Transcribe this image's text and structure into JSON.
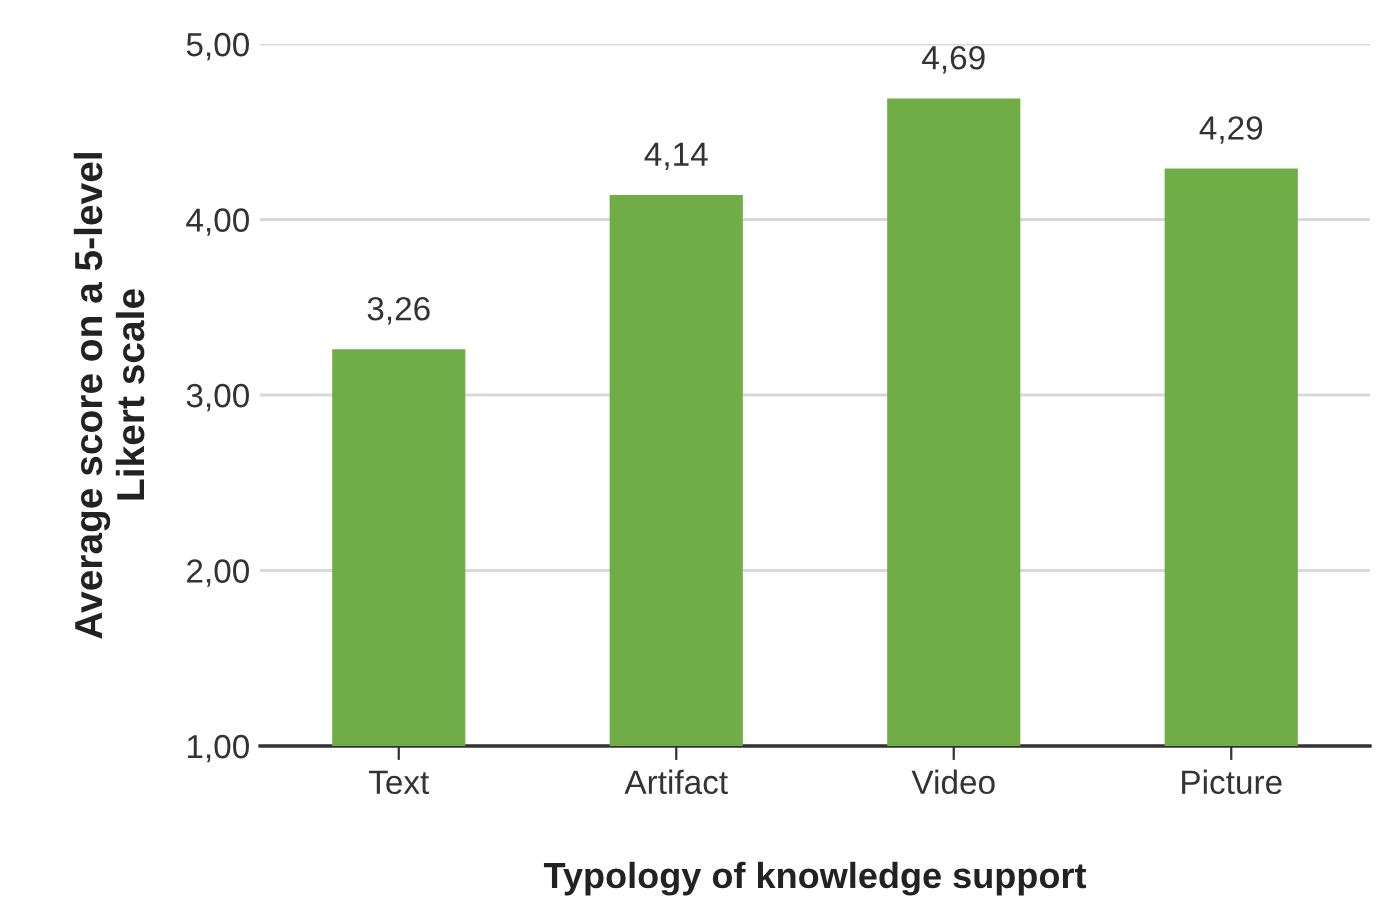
{
  "chart_data": {
    "type": "bar",
    "xlabel": "Typology of knowledge support",
    "ylabel": "Average score on a 5-level\nLikert scale",
    "categories": [
      "Text",
      "Artifact",
      "Video",
      "Picture"
    ],
    "values": [
      3.26,
      4.14,
      4.69,
      4.29
    ],
    "value_labels": [
      "3,26",
      "4,14",
      "4,69",
      "4,29"
    ],
    "color": "#70ad47",
    "ylim": [
      1,
      5
    ],
    "yticks": [
      {
        "value": 1,
        "label": "1,00"
      },
      {
        "value": 2,
        "label": "2,00"
      },
      {
        "value": 3,
        "label": "3,00"
      },
      {
        "value": 4,
        "label": "4,00"
      },
      {
        "value": 5,
        "label": "5,00"
      }
    ],
    "grid": "y",
    "legend": false
  }
}
